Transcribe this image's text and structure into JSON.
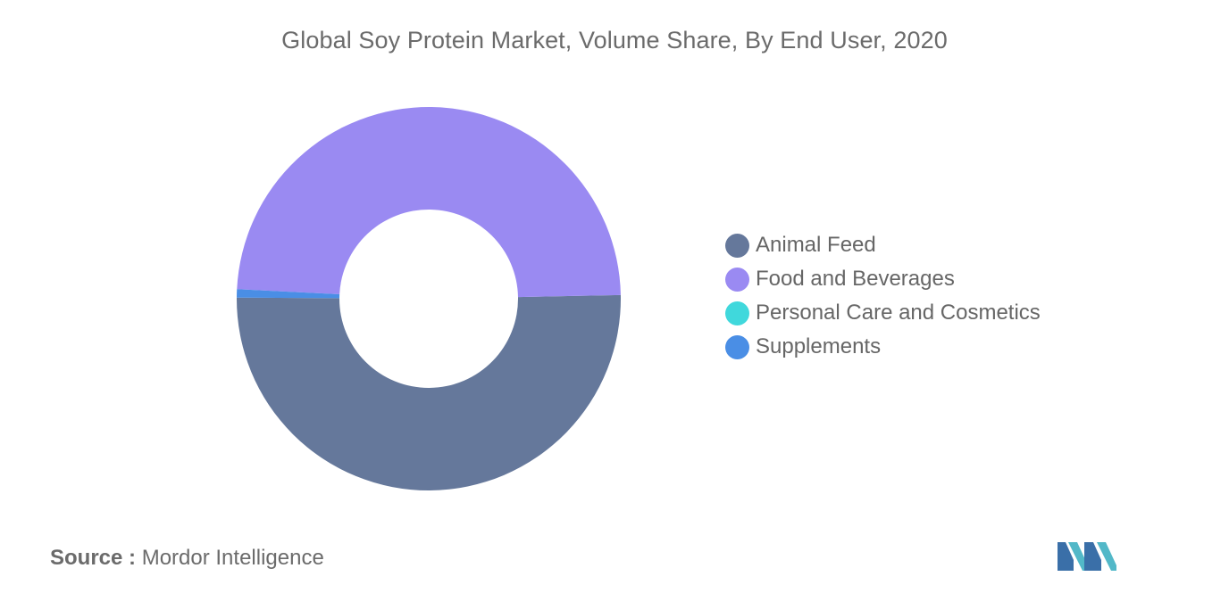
{
  "chart_data": {
    "type": "pie",
    "title": "Global Soy Protein Market, Volume Share, By End User, 2020",
    "donut": true,
    "legend_position": "right",
    "categories": [
      "Animal Feed",
      "Food and Beverages",
      "Personal Care and Cosmetics",
      "Supplements"
    ],
    "values": [
      50.4,
      48.9,
      0.0,
      0.7
    ],
    "colors": [
      "#65789b",
      "#9a8af2",
      "#40d8dc",
      "#4a8ee5"
    ]
  },
  "source": {
    "label": "Source :",
    "text": "Mordor Intelligence"
  }
}
